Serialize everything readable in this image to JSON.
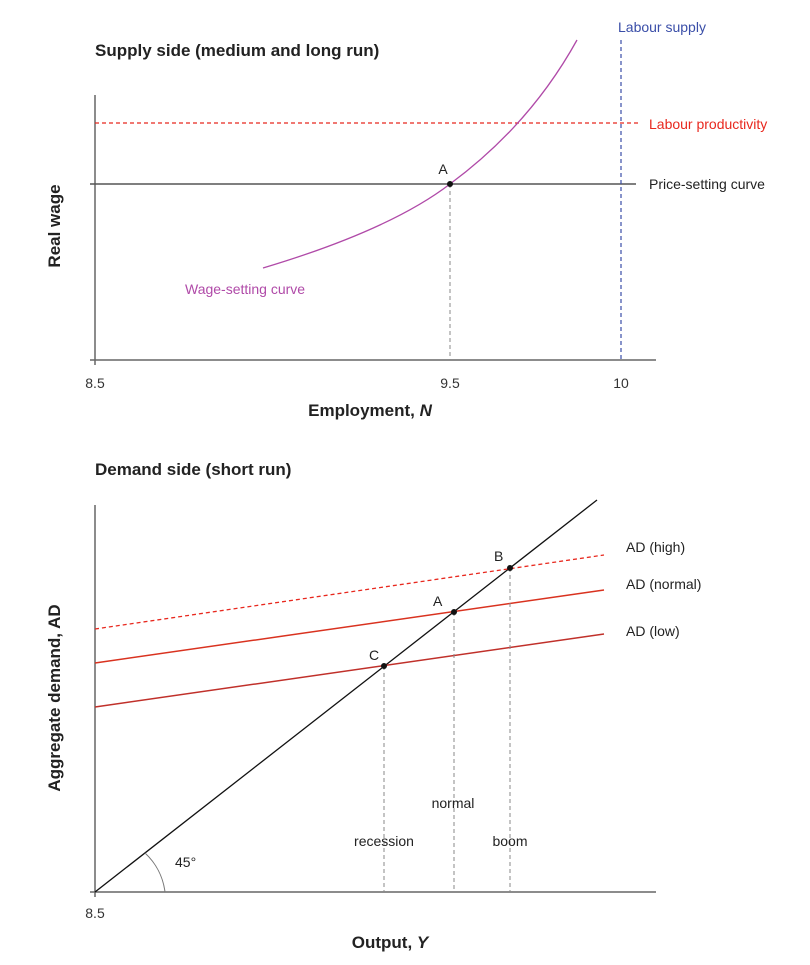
{
  "supply": {
    "title": "Supply side (medium and long run)",
    "ylabel": "Real wage",
    "xlabel": "Employment, ",
    "xlabel_var": "N",
    "ticks": [
      "8.5",
      "9.5",
      "10"
    ],
    "labour_supply": "Labour supply",
    "labour_productivity": "Labour productivity",
    "price_setting": "Price-setting curve",
    "wage_setting": "Wage-setting curve",
    "point_A": "A",
    "colors": {
      "labour_supply": "#3a4ea8",
      "labour_productivity": "#e8281e",
      "wage_setting": "#b04aa8",
      "price_setting": "#555555"
    }
  },
  "demand": {
    "title": "Demand side (short run)",
    "ylabel": "Aggregate demand, AD",
    "xlabel": "Output, ",
    "xlabel_var": "Y",
    "tick": "8.5",
    "ad_high": "AD (high)",
    "ad_normal": "AD (normal)",
    "ad_low": "AD (low)",
    "point_A": "A",
    "point_B": "B",
    "point_C": "C",
    "normal": "normal",
    "recession": "recession",
    "boom": "boom",
    "angle": "45°",
    "colors": {
      "ad_high": "#e8281e",
      "ad_normal": "#d9321f",
      "ad_low": "#c0302a"
    }
  }
}
